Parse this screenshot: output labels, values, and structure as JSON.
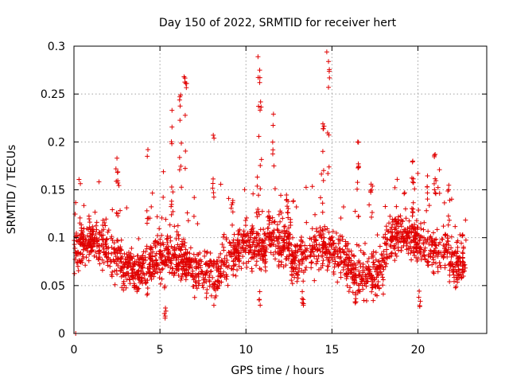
{
  "chart_data": {
    "type": "scatter",
    "title": "Day 150 of 2022, SRMTID for receiver hert",
    "xlabel": "GPS time / hours",
    "ylabel": "SRMTID / TECUs",
    "xlim": [
      0,
      24
    ],
    "ylim": [
      0,
      0.3
    ],
    "x_ticks": [
      0,
      5,
      10,
      15,
      20
    ],
    "x_tick_labels": [
      "0",
      "5",
      "10",
      "15",
      "20"
    ],
    "y_ticks": [
      0,
      0.05,
      0.1,
      0.15,
      0.2,
      0.25,
      0.3
    ],
    "y_tick_labels": [
      "0",
      "0.05",
      "0.1",
      "0.15",
      "0.2",
      "0.25",
      "0.3"
    ],
    "grid": true,
    "marker": "plus",
    "color": "#e00000",
    "series": [
      {
        "name": "SRMTID",
        "x_range": [
          0,
          22.8
        ],
        "typical_y": 0.08,
        "notable_points": [
          {
            "x": 0.1,
            "y": 0.0
          },
          {
            "x": 2.5,
            "y": 0.183
          },
          {
            "x": 4.3,
            "y": 0.192
          },
          {
            "x": 5.3,
            "y": 0.016
          },
          {
            "x": 5.7,
            "y": 0.233
          },
          {
            "x": 6.2,
            "y": 0.249
          },
          {
            "x": 6.4,
            "y": 0.268
          },
          {
            "x": 8.1,
            "y": 0.207
          },
          {
            "x": 10.7,
            "y": 0.289
          },
          {
            "x": 10.8,
            "y": 0.275
          },
          {
            "x": 10.8,
            "y": 0.262
          },
          {
            "x": 11.6,
            "y": 0.229
          },
          {
            "x": 14.7,
            "y": 0.294
          },
          {
            "x": 14.8,
            "y": 0.284
          },
          {
            "x": 14.8,
            "y": 0.257
          },
          {
            "x": 16.5,
            "y": 0.2
          },
          {
            "x": 16.4,
            "y": 0.033
          },
          {
            "x": 19.7,
            "y": 0.18
          },
          {
            "x": 20.1,
            "y": 0.029
          },
          {
            "x": 21.0,
            "y": 0.187
          },
          {
            "x": 22.6,
            "y": 0.103
          }
        ]
      }
    ]
  }
}
